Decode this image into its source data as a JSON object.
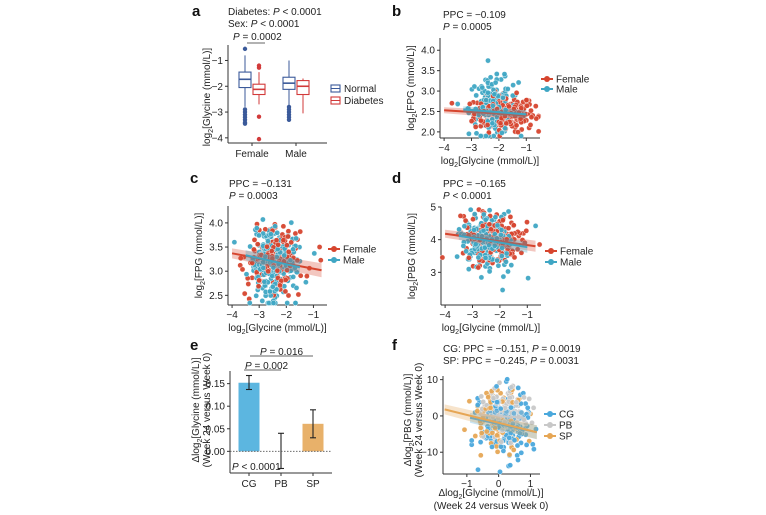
{
  "chart_data": [
    {
      "panel": "a",
      "type": "box",
      "annotations": [
        "Diabetes: P < 0.0001",
        "Sex: P < 0.0001",
        "P = 0.0002"
      ],
      "ylabel": "log2[Glycine (mmol/L)]",
      "categories": [
        "Female",
        "Male"
      ],
      "yticks": [
        -1,
        -2,
        -3,
        -4
      ],
      "ylim": [
        -4.2,
        -0.4
      ],
      "legend": {
        "placement": "right",
        "entries": [
          "Normal",
          "Diabetes"
        ]
      },
      "colors": {
        "Normal": "#3b5a9a",
        "Diabetes": "#d23a3a"
      },
      "boxes": [
        {
          "category": "Female",
          "group": "Normal",
          "whisker_low": -2.8,
          "q1": -2.05,
          "median": -1.73,
          "q3": -1.45,
          "whisker_high": -0.8,
          "outliers": [
            -0.55,
            -2.9,
            -3.0,
            -3.1,
            -3.2,
            -3.3,
            -3.4,
            -3.45
          ]
        },
        {
          "category": "Female",
          "group": "Diabetes",
          "whisker_low": -2.7,
          "q1": -2.32,
          "median": -2.12,
          "q3": -1.92,
          "whisker_high": -1.45,
          "outliers": [
            -1.2,
            -1.28,
            -3.18,
            -4.05
          ]
        },
        {
          "category": "Male",
          "group": "Normal",
          "whisker_low": -2.75,
          "q1": -2.12,
          "median": -1.88,
          "q3": -1.65,
          "whisker_high": -1.0,
          "outliers": [
            -2.8,
            -2.9,
            -3.0,
            -3.1,
            -3.2,
            -3.3
          ]
        },
        {
          "category": "Male",
          "group": "Diabetes",
          "whisker_low": -3.05,
          "q1": -2.32,
          "median": -2.0,
          "q3": -1.78,
          "whisker_high": -1.7,
          "outliers": []
        }
      ]
    },
    {
      "panel": "b",
      "type": "scatter",
      "annotations": [
        "PPC = −0.109",
        "P = 0.0005"
      ],
      "xlabel": "log2[Glycine (mmol/L)]",
      "ylabel": "log2[FPG (mmol/L)]",
      "xticks": [
        -4,
        -3,
        -2,
        -1
      ],
      "yticks": [
        2.0,
        2.5,
        3.0,
        3.5,
        4.0
      ],
      "xlim": [
        -4.15,
        -0.5
      ],
      "ylim": [
        1.85,
        4.3
      ],
      "legend": {
        "placement": "right",
        "entries": [
          "Female",
          "Male"
        ]
      },
      "series": [
        {
          "name": "Female",
          "color": "#d6452e",
          "fit": {
            "x": [
              -4.0,
              -1.0
            ],
            "y": [
              2.53,
              2.4
            ]
          },
          "center": [
            -1.8,
            2.45
          ],
          "spread": [
            0.55,
            0.22
          ],
          "n": 230
        },
        {
          "name": "Male",
          "color": "#3fa6c4",
          "fit": {
            "x": [
              -3.3,
              -1.0
            ],
            "y": [
              2.55,
              2.43
            ]
          },
          "center": [
            -2.2,
            2.6
          ],
          "spread": [
            0.45,
            0.35
          ],
          "n": 170
        }
      ]
    },
    {
      "panel": "c",
      "type": "scatter",
      "annotations": [
        "PPC = −0.131",
        "P = 0.0003"
      ],
      "xlabel": "log2[Glycine (mmol/L)]",
      "ylabel": "log2[FPG (mmol/L)]",
      "xticks": [
        -4,
        -3,
        -2,
        -1
      ],
      "yticks": [
        2.5,
        3.0,
        3.5,
        4.0
      ],
      "xlim": [
        -4.15,
        -0.5
      ],
      "ylim": [
        2.3,
        4.35
      ],
      "legend": {
        "placement": "right",
        "entries": [
          "Female",
          "Male"
        ]
      },
      "series": [
        {
          "name": "Female",
          "color": "#d6452e",
          "fit": {
            "x": [
              -4.0,
              -0.7
            ],
            "y": [
              3.37,
              3.02
            ]
          },
          "center": [
            -2.4,
            3.25
          ],
          "spread": [
            0.5,
            0.35
          ],
          "n": 170
        },
        {
          "name": "Male",
          "color": "#3fa6c4",
          "fit": {
            "x": [
              -3.5,
              -1.5
            ],
            "y": [
              3.33,
              3.08
            ]
          },
          "center": [
            -2.5,
            3.15
          ],
          "spread": [
            0.45,
            0.38
          ],
          "n": 230
        }
      ]
    },
    {
      "panel": "d",
      "type": "scatter",
      "annotations": [
        "PPC = −0.165",
        "P < 0.0001"
      ],
      "xlabel": "log2[Glycine (mmol/L)]",
      "ylabel": "log2[PBG (mmol/L)]",
      "xticks": [
        -4,
        -3,
        -2,
        -1
      ],
      "yticks": [
        3,
        4,
        5
      ],
      "xlim": [
        -4.15,
        -0.5
      ],
      "ylim": [
        2.0,
        5.0
      ],
      "legend": {
        "placement": "right",
        "entries": [
          "Female",
          "Male"
        ]
      },
      "series": [
        {
          "name": "Female",
          "color": "#d6452e",
          "fit": {
            "x": [
              -4.0,
              -0.7
            ],
            "y": [
              4.18,
              3.8
            ]
          },
          "center": [
            -2.3,
            4.05
          ],
          "spread": [
            0.55,
            0.35
          ],
          "n": 200
        },
        {
          "name": "Male",
          "color": "#3fa6c4",
          "fit": {
            "x": [
              -3.5,
              -1.0
            ],
            "y": [
              4.12,
              3.77
            ]
          },
          "center": [
            -2.4,
            3.85
          ],
          "spread": [
            0.45,
            0.45
          ],
          "n": 200
        }
      ]
    },
    {
      "panel": "e",
      "type": "bar",
      "annotations": [
        "P = 0.016",
        "P = 0.002",
        "P < 0.0001"
      ],
      "ylabel": "Δlog2[Glycine (mmol/L)] (Week 24 versus Week 0)",
      "categories": [
        "CG",
        "PB",
        "SP"
      ],
      "values": [
        0.152,
        0.0,
        0.061
      ],
      "errors_low": [
        0.137,
        -0.038,
        0.03
      ],
      "errors_high": [
        0.168,
        0.04,
        0.092
      ],
      "colors": [
        "#5cb6e0",
        "#ffffff",
        "#e8b16a"
      ],
      "yticks": [
        0.0,
        0.05,
        0.1,
        0.15
      ],
      "ytick_labels": [
        "0.00",
        "0.05",
        "0.10",
        "0.15"
      ],
      "ylim": [
        -0.048,
        0.178
      ]
    },
    {
      "panel": "f",
      "type": "scatter",
      "annotations": [
        "CG: PPC = −0.151, P = 0.0019",
        "SP: PPC = −0.245, P = 0.0031"
      ],
      "xlabel": "Δlog2[Glycine (mmol/L)]",
      "xlabel2": "(Week 24 versus Week 0)",
      "ylabel": "Δlog2[PBG (mmol/L)] (Week 24 versus Week 0)",
      "xticks": [
        -1,
        0,
        1
      ],
      "yticks": [
        10,
        0,
        -10
      ],
      "xlim": [
        -1.75,
        1.3
      ],
      "ylim": [
        -16,
        11
      ],
      "legend": {
        "placement": "right",
        "entries": [
          "CG",
          "PB",
          "SP"
        ]
      },
      "series": [
        {
          "name": "CG",
          "color": "#4aa8dc",
          "fit": {
            "x": [
              -0.9,
              1.2
            ],
            "y": [
              -0.5,
              -4.5
            ]
          },
          "center": [
            0.2,
            -2.5
          ],
          "spread": [
            0.38,
            4.6
          ],
          "n": 200
        },
        {
          "name": "PB",
          "color": "#c8c8c8",
          "fit": {
            "x": [
              -0.6,
              0.8
            ],
            "y": [
              0.3,
              -0.5
            ]
          },
          "center": [
            0.2,
            0.5
          ],
          "spread": [
            0.35,
            3.5
          ],
          "n": 110
        },
        {
          "name": "SP",
          "color": "#e6a655",
          "fit": {
            "x": [
              -1.7,
              1.2
            ],
            "y": [
              1.8,
              -4.5
            ]
          },
          "center": [
            0.0,
            -1.0
          ],
          "spread": [
            0.42,
            4.2
          ],
          "n": 110
        }
      ]
    }
  ],
  "panels": {
    "a": {
      "letter": "a",
      "stat1_prefix": "Diabetes: ",
      "stat2_prefix": "Sex: ",
      "p": "P",
      "stat_value": " < 0.0001",
      "pair_value": " = 0.0002",
      "ylabel_pre": "log",
      "ylabel_post": "[Glycine (mmol/L)]",
      "xcats": [
        "Female",
        "Male"
      ],
      "legend": [
        "Normal",
        "Diabetes"
      ],
      "yticks": [
        "−1",
        "−2",
        "−3",
        "−4"
      ]
    },
    "b": {
      "letter": "b",
      "ppc": "PPC = −0.109",
      "p": "P",
      "pval": " = 0.0005",
      "xlabel_pre": "log",
      "xlabel_post": "[Glycine (mmol/L)]",
      "ylabel_pre": "log",
      "ylabel_post": "[FPG (mmol/L)]",
      "xticks": [
        "−4",
        "−3",
        "−2",
        "−1"
      ],
      "yticks": [
        "2.0",
        "2.5",
        "3.0",
        "3.5",
        "4.0"
      ],
      "legend": [
        "Female",
        "Male"
      ]
    },
    "c": {
      "letter": "c",
      "ppc": "PPC = −0.131",
      "p": "P",
      "pval": " = 0.0003",
      "xlabel_pre": "log",
      "xlabel_post": "[Glycine (mmol/L)]",
      "ylabel_pre": "log",
      "ylabel_post": "[FPG (mmol/L)]",
      "xticks": [
        "−4",
        "−3",
        "−2",
        "−1"
      ],
      "yticks": [
        "2.5",
        "3.0",
        "3.5",
        "4.0"
      ],
      "legend": [
        "Female",
        "Male"
      ]
    },
    "d": {
      "letter": "d",
      "ppc": "PPC = −0.165",
      "p": "P",
      "pval": " < 0.0001",
      "xlabel_pre": "log",
      "xlabel_post": "[Glycine (mmol/L)]",
      "ylabel_pre": "log",
      "ylabel_post": "[PBG (mmol/L)]",
      "xticks": [
        "−4",
        "−3",
        "−2",
        "−1"
      ],
      "yticks": [
        "3",
        "4",
        "5"
      ],
      "legend": [
        "Female",
        "Male"
      ]
    },
    "e": {
      "letter": "e",
      "p": "P",
      "p1": " = 0.016",
      "p2": " = 0.002",
      "p3": " < 0.0001",
      "ylabel1_pre": "Δlog",
      "ylabel1_post": "[Glycine (mmol/L)]",
      "ylabel2": "(Week 24 versus Week 0)",
      "xcats": [
        "CG",
        "PB",
        "SP"
      ],
      "yticks": [
        "0.00",
        "0.05",
        "0.10",
        "0.15"
      ]
    },
    "f": {
      "letter": "f",
      "l1a": "CG: PPC = −0.151, ",
      "l1b": " = 0.0019",
      "l2a": "SP: PPC = −0.245, ",
      "l2b": " = 0.0031",
      "p": "P",
      "xlabel_pre": "Δlog",
      "xlabel_post": "[Glycine (mmol/L)]",
      "xlabel2": "(Week 24 versus Week 0)",
      "ylabel1_pre": "Δlog",
      "ylabel1_post": "[PBG (mmol/L)]",
      "ylabel2": "(Week 24 versus Week 0)",
      "xticks": [
        "−1",
        "0",
        "1"
      ],
      "yticks": [
        "10",
        "0",
        "−10"
      ],
      "legend": [
        "CG",
        "PB",
        "SP"
      ]
    },
    "sub2": "2"
  }
}
